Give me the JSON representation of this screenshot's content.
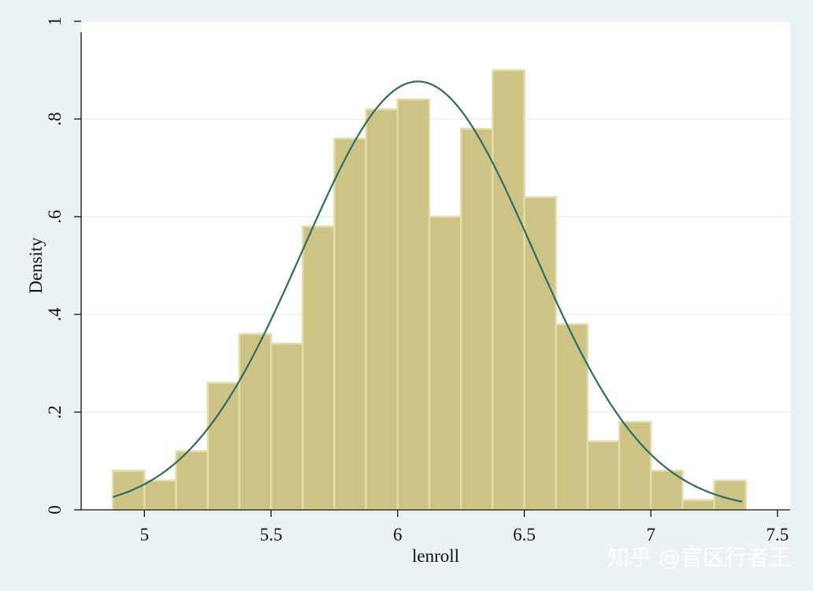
{
  "chart_data": {
    "type": "bar",
    "subtype": "histogram-with-normal-density",
    "xlabel": "lenroll",
    "ylabel": "Density",
    "xlim": [
      4.75,
      7.55
    ],
    "ylim": [
      0,
      1
    ],
    "x_ticks": [
      5,
      5.5,
      6,
      6.5,
      7,
      7.5
    ],
    "x_tick_labels": [
      "5",
      "5.5",
      "6",
      "6.5",
      "7",
      "7.5"
    ],
    "y_ticks": [
      0,
      0.2,
      0.4,
      0.6,
      0.8,
      1
    ],
    "y_tick_labels": [
      "0",
      ".2",
      ".4",
      ".6",
      ".8",
      "1"
    ],
    "grid": true,
    "legend": "none",
    "bins": [
      {
        "x0": 4.875,
        "x1": 5.0,
        "density": 0.08
      },
      {
        "x0": 5.0,
        "x1": 5.125,
        "density": 0.06
      },
      {
        "x0": 5.125,
        "x1": 5.25,
        "density": 0.12
      },
      {
        "x0": 5.25,
        "x1": 5.375,
        "density": 0.26
      },
      {
        "x0": 5.375,
        "x1": 5.5,
        "density": 0.36
      },
      {
        "x0": 5.5,
        "x1": 5.625,
        "density": 0.34
      },
      {
        "x0": 5.625,
        "x1": 5.75,
        "density": 0.58
      },
      {
        "x0": 5.75,
        "x1": 5.875,
        "density": 0.76
      },
      {
        "x0": 5.875,
        "x1": 6.0,
        "density": 0.82
      },
      {
        "x0": 6.0,
        "x1": 6.125,
        "density": 0.84
      },
      {
        "x0": 6.125,
        "x1": 6.25,
        "density": 0.6
      },
      {
        "x0": 6.25,
        "x1": 6.375,
        "density": 0.78
      },
      {
        "x0": 6.375,
        "x1": 6.5,
        "density": 0.9
      },
      {
        "x0": 6.5,
        "x1": 6.625,
        "density": 0.64
      },
      {
        "x0": 6.625,
        "x1": 6.75,
        "density": 0.38
      },
      {
        "x0": 6.75,
        "x1": 6.875,
        "density": 0.14
      },
      {
        "x0": 6.875,
        "x1": 7.0,
        "density": 0.18
      },
      {
        "x0": 7.0,
        "x1": 7.125,
        "density": 0.08
      },
      {
        "x0": 7.125,
        "x1": 7.25,
        "density": 0.02
      },
      {
        "x0": 7.25,
        "x1": 7.375,
        "density": 0.06
      }
    ],
    "normal_curve": {
      "mean": 6.08,
      "sd": 0.455,
      "x_range": [
        4.875,
        7.36
      ]
    },
    "colors": {
      "bar_fill": "#ccc385",
      "bar_edge": "#e3ddae",
      "curve": "#2e6b62",
      "plot_bg": "#ffffff",
      "outer_bg": "#eaf2f3",
      "grid": "#e8eff0"
    }
  },
  "watermark": "知乎 @盲区行者王"
}
